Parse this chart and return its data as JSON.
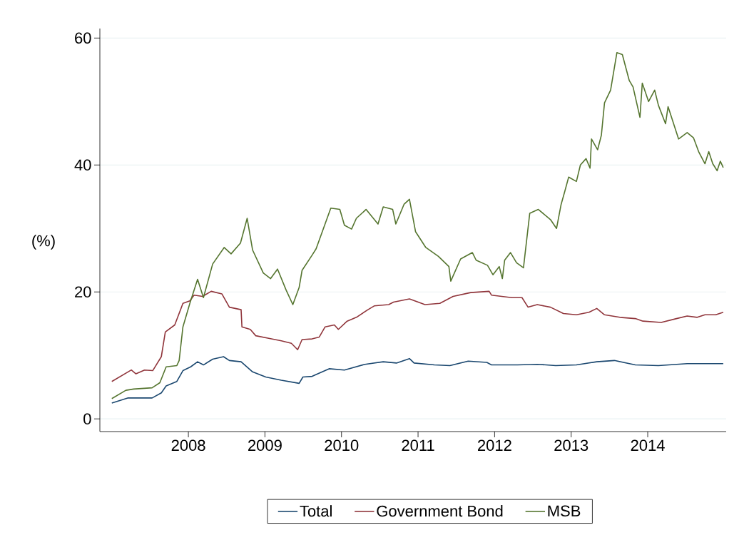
{
  "chart_data": {
    "type": "line",
    "ylabel": "(%)",
    "xlim": [
      "2006-11-05",
      "2015-01-10"
    ],
    "ylim": [
      -2,
      61.5
    ],
    "xticks": [
      {
        "value": "2008-01-01",
        "label": "2008"
      },
      {
        "value": "2009-01-01",
        "label": "2009"
      },
      {
        "value": "2010-01-01",
        "label": "2010"
      },
      {
        "value": "2011-01-01",
        "label": "2011"
      },
      {
        "value": "2012-01-01",
        "label": "2012"
      },
      {
        "value": "2013-01-01",
        "label": "2013"
      },
      {
        "value": "2014-01-01",
        "label": "2014"
      }
    ],
    "yticks": [
      0,
      20,
      40,
      60
    ],
    "grid": "y",
    "legend": "bottom",
    "marker": "none",
    "line_style": "solid",
    "series": [
      {
        "name": "Total",
        "color": "#1a476f",
        "x": [
          "2007-01-01",
          "2007-03-20",
          "2007-07-12",
          "2007-08-25",
          "2007-09-17",
          "2007-11-07",
          "2007-12-06",
          "2008-01-12",
          "2008-02-14",
          "2008-03-13",
          "2008-04-26",
          "2008-06-17",
          "2008-07-15",
          "2008-09-09",
          "2008-11-03",
          "2009-01-05",
          "2009-03-20",
          "2009-06-13",
          "2009-07-01",
          "2009-08-14",
          "2009-09-02",
          "2009-11-03",
          "2010-01-15",
          "2010-04-23",
          "2010-07-19",
          "2010-09-20",
          "2010-11-21",
          "2010-12-13",
          "2011-03-20",
          "2011-06-02",
          "2011-08-28",
          "2011-11-25",
          "2011-12-17",
          "2012-04-19",
          "2012-07-23",
          "2012-10-19",
          "2013-01-26",
          "2013-05-03",
          "2013-07-26",
          "2013-11-03",
          "2014-02-21",
          "2014-07-08",
          "2014-12-27"
        ],
        "values": [
          2.5,
          3.3,
          3.3,
          4.1,
          5.2,
          5.9,
          7.6,
          8.2,
          9.0,
          8.5,
          9.4,
          9.8,
          9.2,
          9.0,
          7.4,
          6.6,
          6.1,
          5.6,
          6.6,
          6.7,
          7.0,
          7.9,
          7.7,
          8.6,
          9.0,
          8.8,
          9.5,
          8.8,
          8.5,
          8.4,
          9.1,
          8.9,
          8.5,
          8.5,
          8.6,
          8.4,
          8.5,
          9.0,
          9.2,
          8.5,
          8.4,
          8.7,
          8.7
        ]
      },
      {
        "name": "Government Bond",
        "color": "#90353b",
        "x": [
          "2007-01-01",
          "2007-04-04",
          "2007-04-26",
          "2007-06-06",
          "2007-07-15",
          "2007-08-25",
          "2007-09-13",
          "2007-10-28",
          "2007-12-06",
          "2008-01-08",
          "2008-01-28",
          "2008-03-09",
          "2008-04-19",
          "2008-06-09",
          "2008-07-15",
          "2008-09-09",
          "2008-09-13",
          "2008-10-23",
          "2008-11-18",
          "2009-01-19",
          "2009-03-20",
          "2009-05-07",
          "2009-06-06",
          "2009-06-27",
          "2009-08-14",
          "2009-09-17",
          "2009-10-15",
          "2009-11-28",
          "2009-12-17",
          "2010-01-28",
          "2010-03-13",
          "2010-05-07",
          "2010-06-06",
          "2010-08-14",
          "2010-09-06",
          "2010-11-21",
          "2011-02-03",
          "2011-04-15",
          "2011-06-17",
          "2011-09-09",
          "2011-12-06",
          "2011-12-17",
          "2012-03-24",
          "2012-05-11",
          "2012-06-09",
          "2012-07-23",
          "2012-09-24",
          "2012-11-25",
          "2013-01-26",
          "2013-03-27",
          "2013-05-03",
          "2013-06-09",
          "2013-08-21",
          "2013-11-03",
          "2013-12-09",
          "2014-03-06",
          "2014-05-18",
          "2014-07-08",
          "2014-08-25",
          "2014-10-01",
          "2014-11-21",
          "2014-12-27"
        ],
        "values": [
          5.9,
          7.7,
          7.1,
          7.7,
          7.6,
          9.8,
          13.7,
          14.8,
          18.2,
          18.6,
          19.5,
          19.3,
          20.1,
          19.7,
          17.6,
          17.2,
          14.5,
          14.1,
          13.1,
          12.7,
          12.3,
          11.9,
          10.9,
          12.5,
          12.6,
          12.9,
          14.5,
          14.8,
          14.1,
          15.4,
          16.0,
          17.2,
          17.8,
          18.0,
          18.4,
          18.9,
          18.0,
          18.2,
          19.3,
          19.9,
          20.1,
          19.5,
          19.1,
          19.1,
          17.6,
          18.0,
          17.6,
          16.6,
          16.4,
          16.8,
          17.4,
          16.4,
          16.0,
          15.8,
          15.4,
          15.2,
          15.8,
          16.2,
          16.0,
          16.4,
          16.4,
          16.8
        ]
      },
      {
        "name": "MSB",
        "color": "#55752f",
        "x": [
          "2007-01-01",
          "2007-03-09",
          "2007-04-15",
          "2007-07-12",
          "2007-08-18",
          "2007-09-17",
          "2007-11-07",
          "2007-11-18",
          "2007-12-06",
          "2008-01-08",
          "2008-02-14",
          "2008-03-13",
          "2008-04-26",
          "2008-06-20",
          "2008-07-23",
          "2008-09-06",
          "2008-10-08",
          "2008-11-03",
          "2008-12-24",
          "2009-01-28",
          "2009-03-02",
          "2009-04-12",
          "2009-05-14",
          "2009-06-13",
          "2009-06-27",
          "2009-08-14",
          "2009-09-02",
          "2009-11-11",
          "2009-12-24",
          "2010-01-15",
          "2010-02-18",
          "2010-03-13",
          "2010-04-28",
          "2010-06-24",
          "2010-07-19",
          "2010-09-02",
          "2010-09-17",
          "2010-10-26",
          "2010-11-21",
          "2010-12-20",
          "2011-02-07",
          "2011-04-08",
          "2011-05-28",
          "2011-06-06",
          "2011-07-23",
          "2011-09-17",
          "2011-10-05",
          "2011-11-28",
          "2011-12-24",
          "2012-01-23",
          "2012-02-07",
          "2012-02-18",
          "2012-03-17",
          "2012-04-15",
          "2012-05-18",
          "2012-06-17",
          "2012-07-28",
          "2012-09-24",
          "2012-10-23",
          "2012-11-14",
          "2012-12-02",
          "2012-12-20",
          "2013-01-26",
          "2013-02-14",
          "2013-03-13",
          "2013-04-01",
          "2013-04-08",
          "2013-05-07",
          "2013-05-25",
          "2013-06-09",
          "2013-07-08",
          "2013-08-07",
          "2013-09-02",
          "2013-10-05",
          "2013-10-23",
          "2013-11-25",
          "2013-12-06",
          "2014-01-05",
          "2014-02-03",
          "2014-02-21",
          "2014-03-27",
          "2014-04-08",
          "2014-05-28",
          "2014-07-08",
          "2014-08-07",
          "2014-09-02",
          "2014-10-01",
          "2014-10-19",
          "2014-11-07",
          "2014-11-28",
          "2014-12-13",
          "2014-12-27"
        ],
        "values": [
          3.2,
          4.5,
          4.7,
          4.9,
          5.7,
          8.2,
          8.4,
          9.2,
          14.5,
          18.2,
          22.0,
          19.1,
          24.4,
          27.0,
          26.0,
          27.7,
          31.6,
          26.6,
          23.0,
          22.1,
          23.6,
          20.3,
          18.0,
          20.7,
          23.4,
          25.8,
          26.8,
          33.2,
          33.0,
          30.5,
          29.9,
          31.6,
          33.0,
          30.7,
          33.4,
          33.0,
          30.7,
          33.8,
          34.6,
          29.5,
          27.0,
          25.6,
          24.0,
          21.7,
          25.2,
          26.2,
          25.0,
          24.2,
          22.7,
          24.0,
          22.1,
          25.0,
          26.2,
          24.6,
          23.8,
          32.4,
          33.0,
          31.4,
          30.0,
          33.8,
          35.9,
          38.1,
          37.4,
          40.0,
          41.0,
          39.5,
          44.1,
          42.4,
          44.7,
          49.8,
          51.8,
          57.7,
          57.4,
          53.3,
          52.3,
          47.5,
          52.9,
          50.0,
          51.8,
          49.4,
          46.5,
          49.2,
          44.1,
          45.1,
          44.3,
          42.0,
          40.2,
          42.1,
          40.2,
          39.1,
          40.6,
          39.6
        ]
      }
    ]
  }
}
